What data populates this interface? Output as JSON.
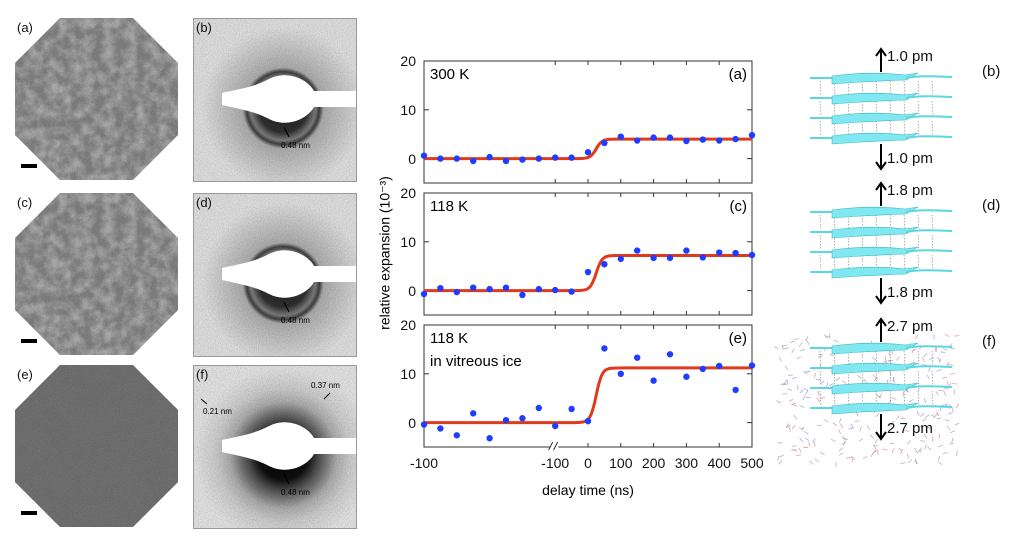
{
  "micrographs": [
    {
      "label": "(a)"
    },
    {
      "label": "(c)"
    },
    {
      "label": "(e)"
    }
  ],
  "diffraction": [
    {
      "label": "(b)",
      "rings": [
        "0.48 nm"
      ]
    },
    {
      "label": "(d)",
      "rings": [
        "0.48 nm"
      ]
    },
    {
      "label": "(f)",
      "rings": [
        "0.48 nm",
        "0.37 nm",
        "0.21 nm"
      ]
    }
  ],
  "chart_data": {
    "type": "scatter",
    "xlabel": "delay time (ns)",
    "ylabel": "relative expansion (10⁻³)",
    "ylim": [
      -5,
      20
    ],
    "yticks": [
      "0",
      "10",
      "20"
    ],
    "x_axis_note": "broken axis: first point at -100, break, then -100 to 500 ns in 50 ns steps",
    "xtick_labels": [
      "-100",
      "-100",
      "0",
      "100",
      "200",
      "300",
      "400",
      "500"
    ],
    "x": [
      "-100",
      "",
      "",
      "",
      "",
      "",
      "",
      "",
      "-100",
      "-50",
      "0",
      "50",
      "100",
      "150",
      "200",
      "250",
      "300",
      "350",
      "400",
      "450",
      "500"
    ],
    "marker_color": "#1f3dff",
    "fit_color": "#e03a1e",
    "panels": [
      {
        "label": "(a)",
        "title": "300 K",
        "subtitle": "",
        "values": [
          0.6,
          0,
          0,
          -0.5,
          0.3,
          -0.5,
          -0.2,
          0,
          0.2,
          0.2,
          1.3,
          3.2,
          4.5,
          3.7,
          4.3,
          4.3,
          3.6,
          3.9,
          3.7,
          4,
          4.8
        ],
        "fit": {
          "plateau": 4.0,
          "rise_center_ns": 25
        }
      },
      {
        "label": "(c)",
        "title": "118 K",
        "subtitle": "",
        "values": [
          -0.7,
          0.5,
          -0.3,
          0.6,
          0.3,
          0.6,
          -0.9,
          0.3,
          0.1,
          -0.2,
          3.8,
          5.4,
          6.5,
          8.2,
          6.7,
          6.7,
          8.2,
          6.8,
          7.8,
          7.7,
          7.3
        ],
        "fit": {
          "plateau": 7.2,
          "rise_center_ns": 25
        }
      },
      {
        "label": "(e)",
        "title": "118 K",
        "subtitle": "in vitreous ice",
        "values": [
          -0.4,
          -1.2,
          -2.6,
          1.9,
          -3.2,
          0.5,
          0.9,
          3,
          -0.7,
          2.8,
          0.3,
          15.2,
          10,
          13.3,
          8.6,
          14,
          9.4,
          11,
          11.6,
          6.7,
          11.7
        ],
        "fit": {
          "plateau": 11.2,
          "rise_center_ns": 25
        }
      }
    ]
  },
  "structures": [
    {
      "label": "(b)",
      "up": "1.0 pm",
      "down": "1.0 pm",
      "solvated": false
    },
    {
      "label": "(d)",
      "up": "1.8 pm",
      "down": "1.8 pm",
      "solvated": false
    },
    {
      "label": "(f)",
      "up": "2.7 pm",
      "down": "2.7 pm",
      "solvated": true
    }
  ]
}
